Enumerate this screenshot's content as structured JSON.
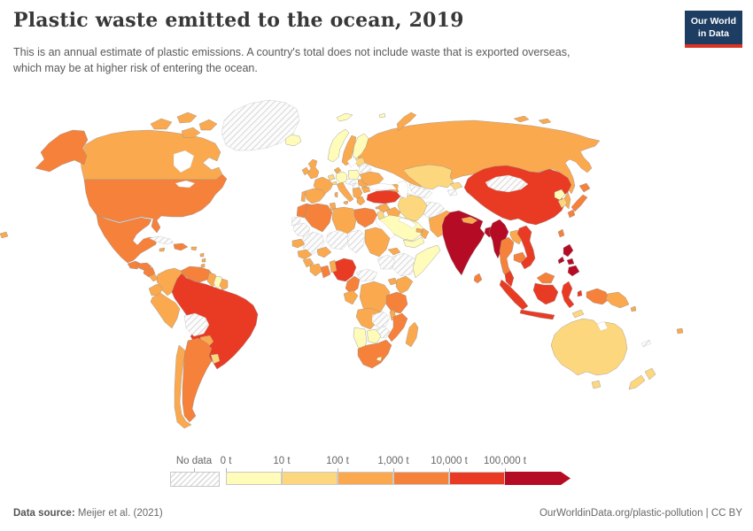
{
  "header": {
    "title": "Plastic waste emitted to the ocean, 2019",
    "subtitle": "This is an annual estimate of plastic emissions. A country's total does not include waste that is exported overseas, which may be at higher risk of entering the ocean."
  },
  "logo": {
    "line1": "Our World",
    "line2": "in Data",
    "bg_color": "#1d3d63",
    "stripe_color": "#d93425"
  },
  "legend": {
    "no_data_label": "No data",
    "tick_labels": [
      "0 t",
      "10 t",
      "100 t",
      "1,000 t",
      "10,000 t",
      "100,000 t"
    ],
    "bin_colors": [
      "#fffbb8",
      "#fdd77e",
      "#fba94e",
      "#f5813b",
      "#e93b23",
      "#b60b25"
    ],
    "no_data_stripe_color": "#dcdcdc"
  },
  "footer": {
    "datasource_label": "Data source:",
    "datasource_value": " Meijer et al. (2021)",
    "right_text": "OurWorldinData.org/plastic-pollution | CC BY"
  },
  "chart_data": {
    "type": "choropleth_map",
    "title": "Plastic waste emitted to the ocean, 2019",
    "unit": "t",
    "scale": "log",
    "bin_edges_t": [
      0,
      10,
      100,
      1000,
      10000,
      100000
    ],
    "bin_ranges": [
      "0-10 t",
      "10-100 t",
      "100-1,000 t",
      "1,000-10,000 t",
      "10,000-100,000 t",
      "100,000+ t"
    ],
    "no_data_value": -1,
    "countries": {
      "greenland": -1,
      "iceland": 0,
      "canada": 2,
      "canadian_arctic": 2,
      "alaska": 3,
      "usa": 3,
      "mexico": 3,
      "guatemala": 3,
      "honduras": 3,
      "nicaragua": 3,
      "costa_rica": 2,
      "panama": 3,
      "cuba": -1,
      "jamaica": 2,
      "hispaniola": 3,
      "puerto_rico": 2,
      "lesser_antilles": 2,
      "trinidad": 3,
      "colombia": 2,
      "venezuela": 3,
      "guyana": 2,
      "suriname": 0,
      "french_guiana": 2,
      "ecuador": 2,
      "peru": 2,
      "brazil": 4,
      "bolivia": -1,
      "paraguay": 2,
      "uruguay": 1,
      "argentina": 3,
      "chile": 2,
      "edge_fragment_west": 2,
      "norway": 0,
      "sweden": 2,
      "finland": 0,
      "denmark": 2,
      "united_kingdom": 2,
      "ireland": 2,
      "benelux": 1,
      "germany": 0,
      "poland": 0,
      "france": 2,
      "spain": 2,
      "portugal": 2,
      "italy": 2,
      "sicily": 2,
      "sardinia": 2,
      "switzerland": 1,
      "austria_czechia": -1,
      "hungary": -1,
      "balkans": 2,
      "greece": 2,
      "romania": 2,
      "bulgaria": 2,
      "baltics": 1,
      "belarus": -1,
      "ukraine": 2,
      "russia": 2,
      "sakhalin": 2,
      "new_siberian_islands": 2,
      "novaya_zemlya": 2,
      "svalbard": 0,
      "arctic_island": 0,
      "kazakhstan": 1,
      "uzbekistan": -1,
      "turkmenistan": -1,
      "kyrgyzstan": 1,
      "tajikistan": -1,
      "afghanistan": -1,
      "pakistan": 2,
      "caucasus": 2,
      "turkey": 4,
      "cyprus": 2,
      "syria": 2,
      "iraq": 2,
      "iran": 1,
      "jordan_israel": 1,
      "saudi_arabia": 0,
      "yemen": 0,
      "oman": 2,
      "uae": 2,
      "morocco": 3,
      "western_sahara": -1,
      "algeria": 3,
      "tunisia": 2,
      "libya": 2,
      "egypt": 3,
      "mauritania": -1,
      "mali": -1,
      "niger": -1,
      "chad": -1,
      "sudan": 2,
      "eritrea": 2,
      "ethiopia": -1,
      "somalia": 0,
      "senegal": 2,
      "guinea": 2,
      "sierra_leone_liberia": 2,
      "ivory_coast": 2,
      "burkina_faso": 2,
      "ghana": 3,
      "togo_benin": 2,
      "nigeria": 4,
      "cameroon": 3,
      "central_african_republic": -1,
      "south_sudan": -1,
      "gabon_congo": 2,
      "dr_congo": 2,
      "uganda": 2,
      "kenya": 2,
      "tanzania": 3,
      "angola": 2,
      "zambia": -1,
      "malawi": 2,
      "mozambique": 3,
      "zimbabwe": -1,
      "botswana": 0,
      "namibia": 0,
      "south_africa": 3,
      "lesotho": 0,
      "madagascar": 2,
      "china": 4,
      "mongolia": -1,
      "north_korea": 0,
      "south_korea": 1,
      "japan_hokkaido": 3,
      "japan_honshu": 3,
      "japan_kyushu": 3,
      "taiwan": 3,
      "india": 5,
      "nepal": 2,
      "bangladesh": 5,
      "sri_lanka": 3,
      "myanmar": 5,
      "thailand": 3,
      "laos": 2,
      "cambodia": 3,
      "vietnam": 4,
      "malaysia": 4,
      "sumatra": 4,
      "java": 4,
      "malaysia_borneo": 3,
      "kalimantan": 4,
      "sulawesi": 4,
      "moluccas": 4,
      "timor": 1,
      "west_papua": 3,
      "papua_new_guinea": 2,
      "luzon": 5,
      "visayas": 5,
      "mindanao": 5,
      "palawan": 5,
      "australia": 1,
      "tasmania": 1,
      "new_zealand_north": 1,
      "new_zealand_south": 1,
      "fiji": 2,
      "new_caledonia": -1,
      "solomon_islands": 2
    }
  }
}
